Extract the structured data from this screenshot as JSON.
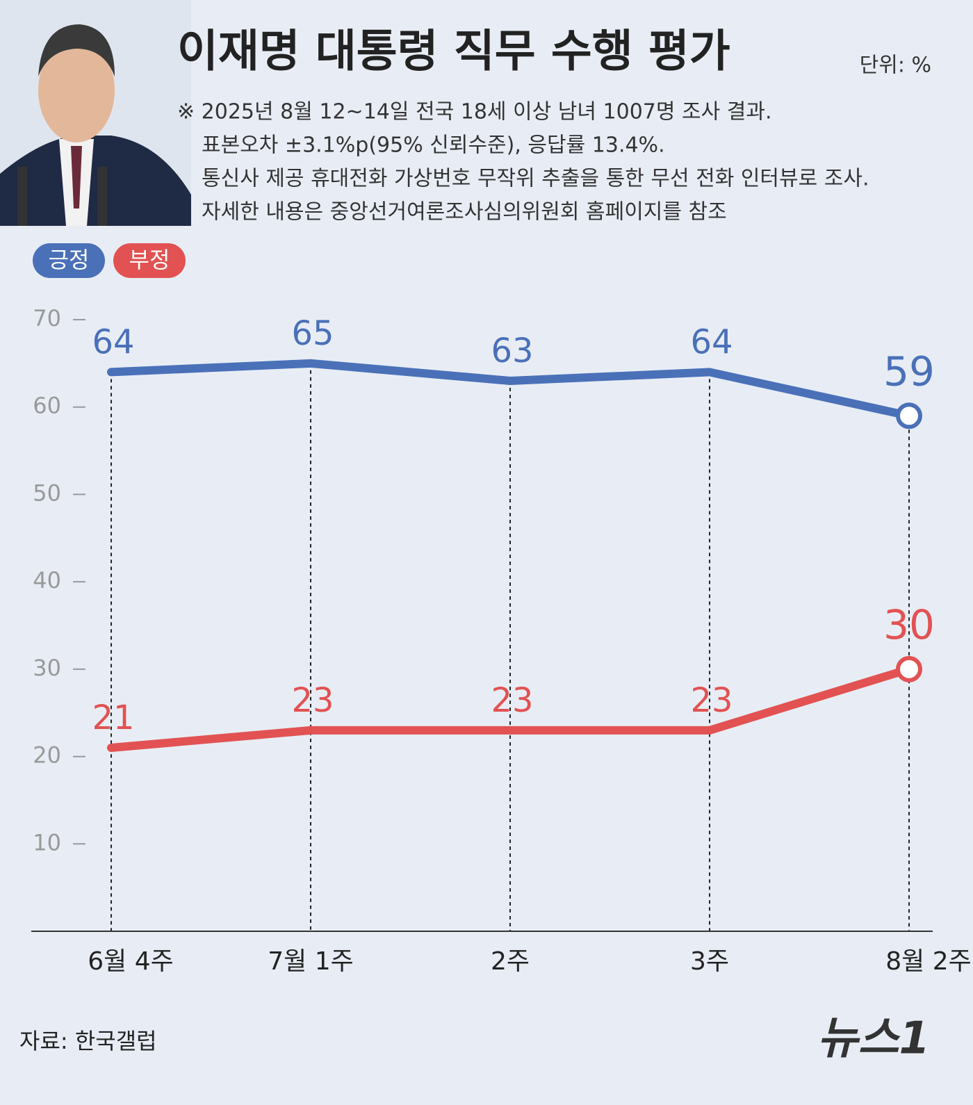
{
  "chart_data": {
    "type": "line",
    "title": "이재명 대통령 직무 수행 평가",
    "unit": "단위: %",
    "notes": [
      "※ 2025년 8월 12~14일 전국 18세 이상 남녀 1007명 조사 결과.",
      "표본오차 ±3.1%p(95% 신뢰수준), 응답률 13.4%.",
      "통신사 제공 휴대전화 가상번호 무작위 추출을 통한 무선 전화 인터뷰로 조사.",
      "자세한 내용은 중앙선거여론조사심의위원회 홈페이지를 참조"
    ],
    "categories": [
      "6월 4주",
      "7월 1주",
      "2주",
      "3주",
      "8월 2주"
    ],
    "series": [
      {
        "name": "긍정",
        "color": "#4a70b8",
        "values": [
          64,
          65,
          63,
          64,
          59
        ]
      },
      {
        "name": "부정",
        "color": "#e25252",
        "values": [
          21,
          23,
          23,
          23,
          30
        ]
      }
    ],
    "ylim": [
      0,
      70
    ],
    "yticks": [
      10,
      20,
      30,
      40,
      50,
      60,
      70
    ],
    "source": "자료: 한국갤럽",
    "logo": "뉴스1"
  }
}
